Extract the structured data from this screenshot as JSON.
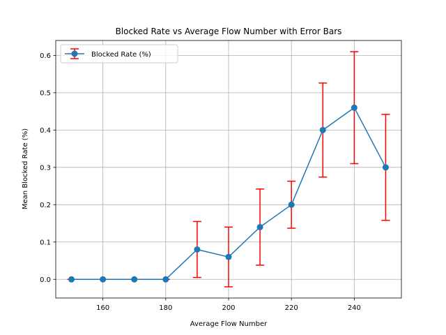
{
  "chart_data": {
    "type": "line",
    "title": "Blocked Rate vs Average Flow Number with Error Bars",
    "xlabel": "Average Flow Number",
    "ylabel": "Mean Blocked Rate (%)",
    "xlim": [
      145,
      255
    ],
    "ylim": [
      -0.05,
      0.64
    ],
    "xticks": [
      160,
      180,
      200,
      220,
      240
    ],
    "yticks": [
      0.0,
      0.1,
      0.2,
      0.3,
      0.4,
      0.5,
      0.6
    ],
    "xtick_labels": [
      "160",
      "180",
      "200",
      "220",
      "240"
    ],
    "ytick_labels": [
      "0.0",
      "0.1",
      "0.2",
      "0.3",
      "0.4",
      "0.5",
      "0.6"
    ],
    "grid": true,
    "legend": {
      "position": "top-left"
    },
    "series": [
      {
        "name": "Blocked Rate (%)",
        "color": "#1f77b4",
        "error_color": "#ff0000",
        "x": [
          150,
          160,
          170,
          180,
          190,
          200,
          210,
          220,
          230,
          240,
          250
        ],
        "y": [
          0.0,
          0.0,
          0.0,
          0.0,
          0.08,
          0.06,
          0.14,
          0.2,
          0.4,
          0.46,
          0.3
        ],
        "yerr": [
          0.0,
          0.0,
          0.0,
          0.0,
          0.075,
          0.08,
          0.102,
          0.063,
          0.126,
          0.15,
          0.142
        ]
      }
    ]
  }
}
